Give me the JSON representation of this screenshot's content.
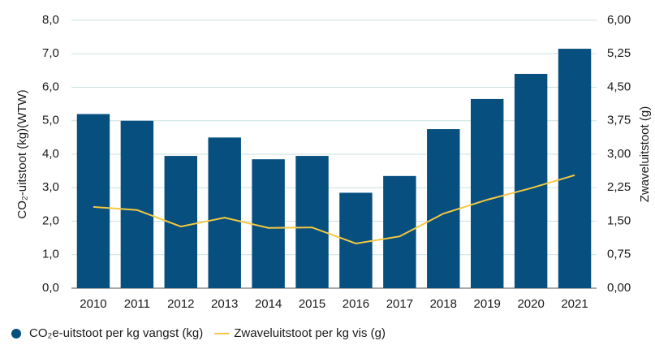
{
  "chart_data": {
    "type": "bar",
    "categories": [
      "2010",
      "2011",
      "2012",
      "2013",
      "2014",
      "2015",
      "2016",
      "2017",
      "2018",
      "2019",
      "2020",
      "2021"
    ],
    "series": [
      {
        "name": "CO₂e-uitstoot per kg vangst (kg)",
        "type": "bar",
        "color": "#064f7e",
        "values": [
          5.2,
          5.0,
          3.95,
          4.5,
          3.85,
          3.95,
          2.85,
          3.35,
          4.75,
          5.65,
          6.4,
          7.15
        ]
      },
      {
        "name": "Zwaveluitstoot per kg vis (g)",
        "type": "line",
        "axis": "y2",
        "color": "#f5c842",
        "values": [
          1.82,
          1.75,
          1.38,
          1.58,
          1.35,
          1.36,
          1.0,
          1.16,
          1.67,
          1.98,
          2.24,
          2.53
        ]
      }
    ],
    "ylabel": "CO₂-uitstoot (kg)(WTW)",
    "y2label": "Zwaveluitstoot (g)",
    "ylim": [
      0,
      8
    ],
    "yticks": [
      {
        "value": 0,
        "label": "0,0"
      },
      {
        "value": 1,
        "label": "1,0"
      },
      {
        "value": 2,
        "label": "2,0"
      },
      {
        "value": 3,
        "label": "3,0"
      },
      {
        "value": 4,
        "label": "4,0"
      },
      {
        "value": 5,
        "label": "5,0"
      },
      {
        "value": 6,
        "label": "6,0"
      },
      {
        "value": 7,
        "label": "7,0"
      },
      {
        "value": 8,
        "label": "8,0"
      }
    ],
    "y2lim": [
      0,
      6
    ],
    "y2ticks": [
      {
        "value": 0,
        "label": "0,00"
      },
      {
        "value": 0.75,
        "label": "0,75"
      },
      {
        "value": 1.5,
        "label": "1,50"
      },
      {
        "value": 2.25,
        "label": "2,25"
      },
      {
        "value": 3,
        "label": "3,00"
      },
      {
        "value": 3.75,
        "label": "3,75"
      },
      {
        "value": 4.5,
        "label": "4,50"
      },
      {
        "value": 5.25,
        "label": "5,25"
      },
      {
        "value": 6,
        "label": "6,00"
      }
    ],
    "grid": true,
    "legend": "bottom"
  }
}
